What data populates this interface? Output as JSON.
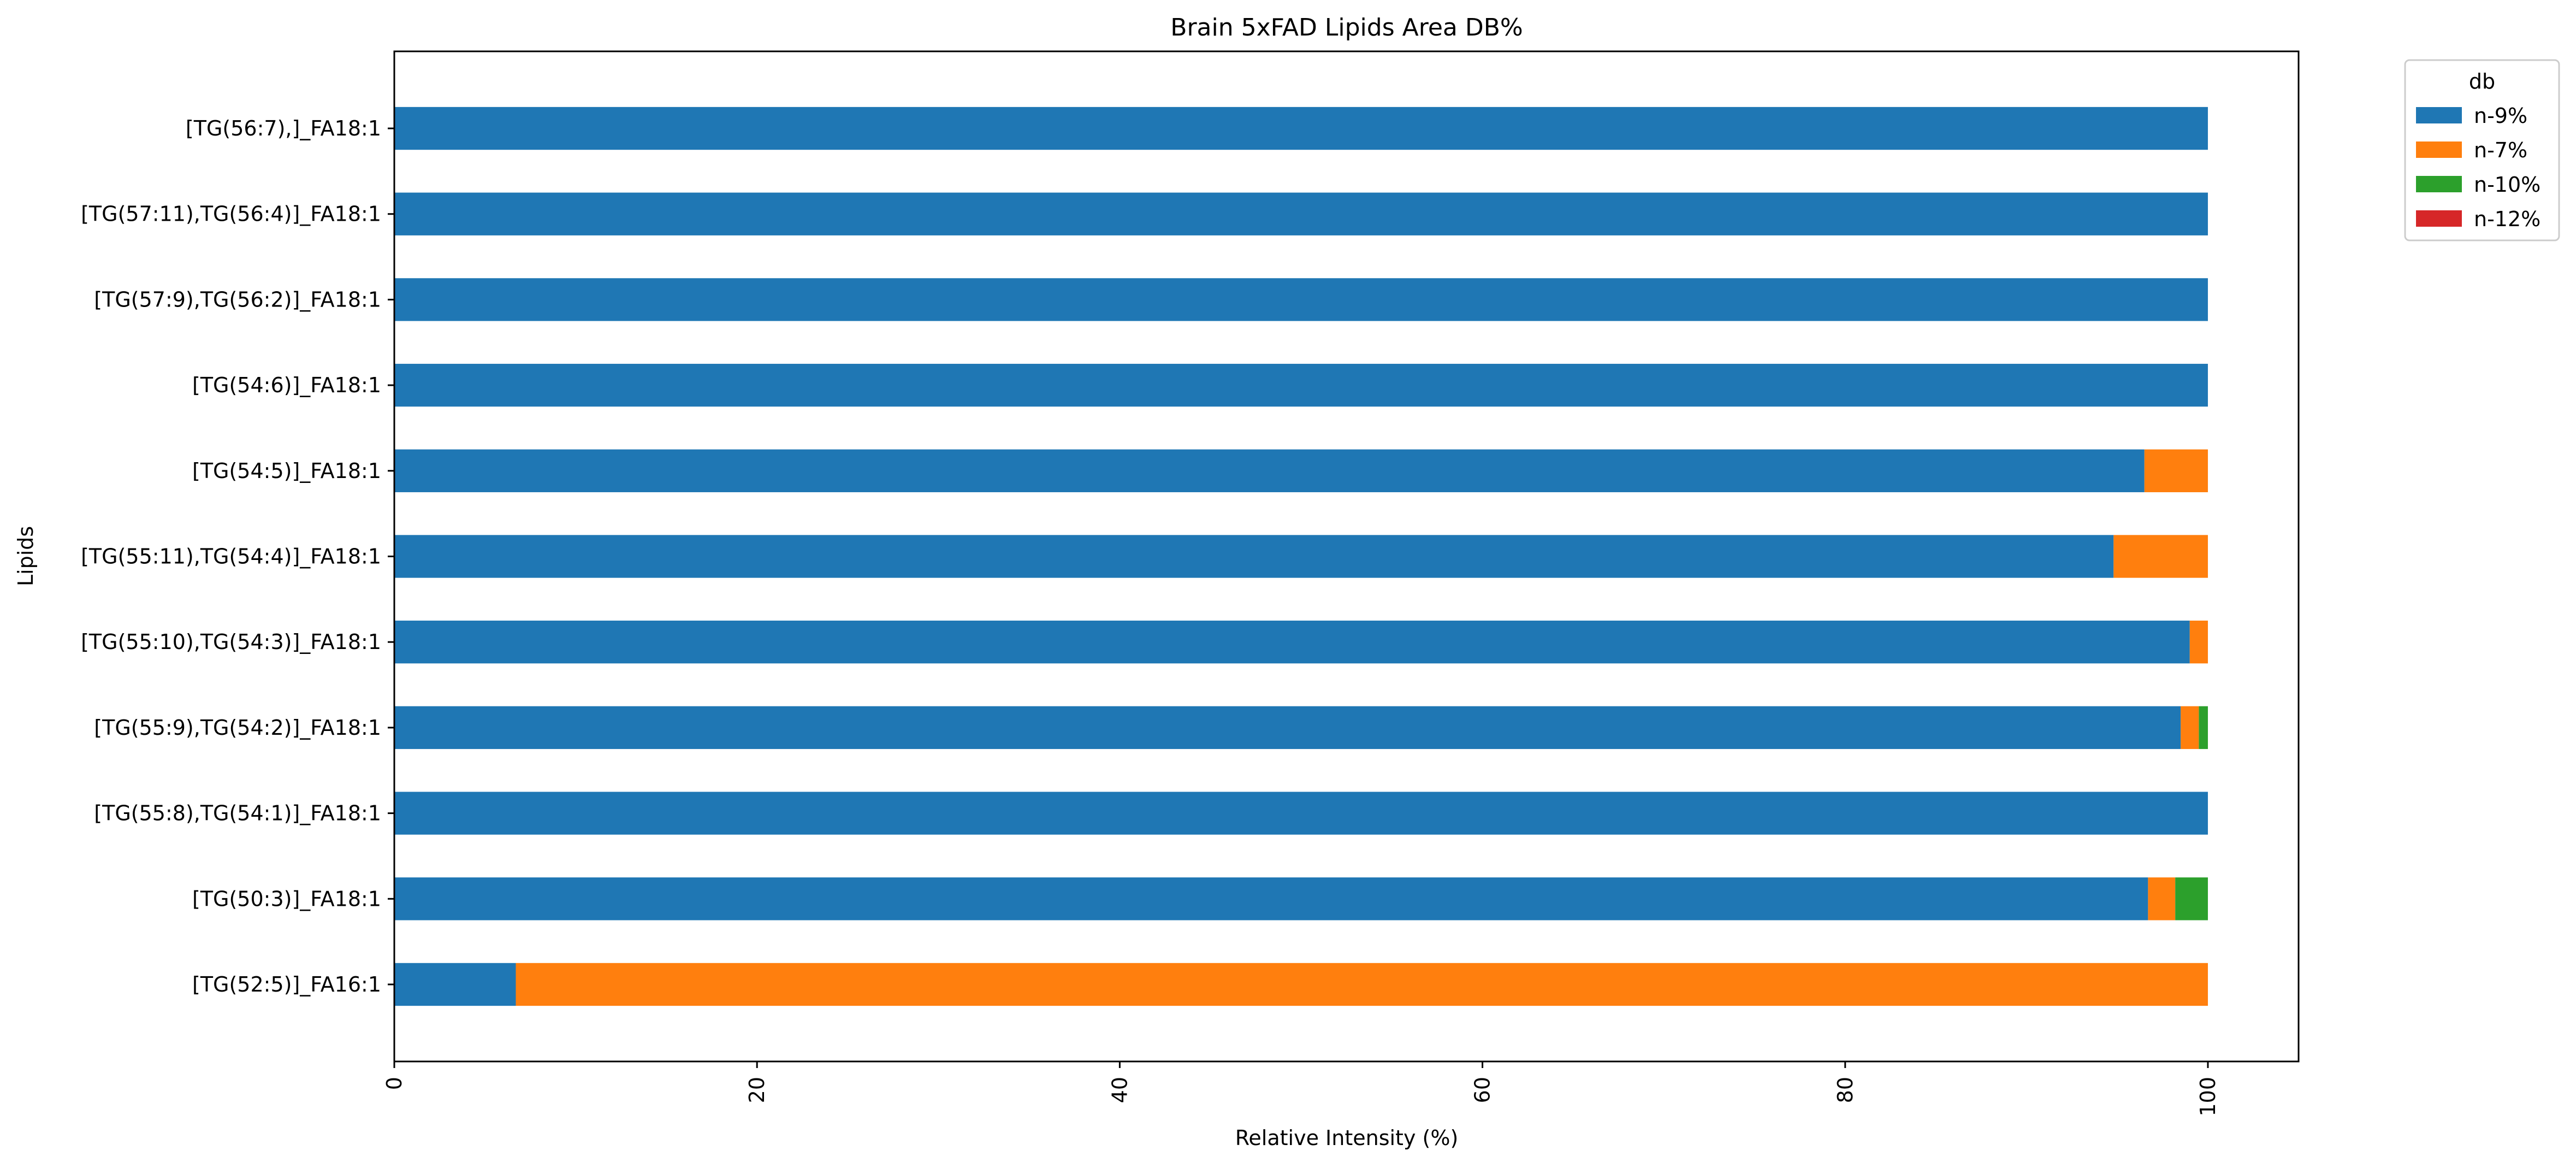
{
  "chart_data": {
    "type": "bar",
    "orientation": "horizontal",
    "stacked": true,
    "title": "Brain 5xFAD Lipids Area DB%",
    "xlabel": "Relative Intensity (%)",
    "ylabel": "Lipids",
    "xlim": [
      0,
      105
    ],
    "xticks": [
      "0",
      "20",
      "40",
      "60",
      "80",
      "100"
    ],
    "grid": false,
    "legend": {
      "title": "db",
      "placement": "top-right outside"
    },
    "categories": [
      "[TG(56:7),]_FA18:1",
      "[TG(57:11),TG(56:4)]_FA18:1",
      "[TG(57:9),TG(56:2)]_FA18:1",
      "[TG(54:6)]_FA18:1",
      "[TG(54:5)]_FA18:1",
      "[TG(55:11),TG(54:4)]_FA18:1",
      "[TG(55:10),TG(54:3)]_FA18:1",
      "[TG(55:9),TG(54:2)]_FA18:1",
      "[TG(55:8),TG(54:1)]_FA18:1",
      "[TG(50:3)]_FA18:1",
      "[TG(52:5)]_FA16:1"
    ],
    "series": [
      {
        "name": "n-9%",
        "color": "#1f77b4",
        "values": [
          100,
          100,
          100,
          100,
          96.5,
          94.8,
          99.0,
          98.5,
          100,
          96.7,
          6.7
        ]
      },
      {
        "name": "n-7%",
        "color": "#ff7f0e",
        "values": [
          0,
          0,
          0,
          0,
          3.5,
          5.2,
          1.0,
          1.0,
          0,
          1.5,
          93.3
        ]
      },
      {
        "name": "n-10%",
        "color": "#2ca02c",
        "values": [
          0,
          0,
          0,
          0,
          0,
          0,
          0,
          0.5,
          0,
          1.8,
          0
        ]
      },
      {
        "name": "n-12%",
        "color": "#d62728",
        "values": [
          0,
          0,
          0,
          0,
          0,
          0,
          0,
          0,
          0,
          0,
          0
        ]
      }
    ]
  }
}
